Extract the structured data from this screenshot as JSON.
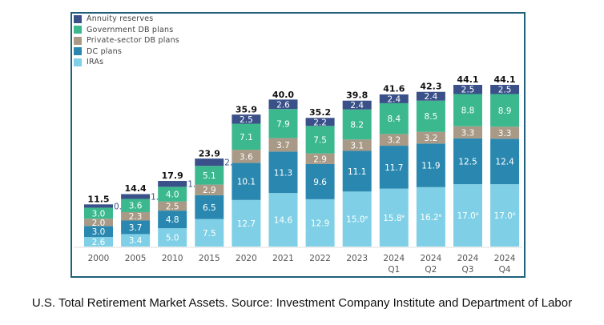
{
  "chart_data": {
    "type": "bar",
    "stacked": true,
    "title": "",
    "xlabel": "",
    "ylabel": "",
    "categories": [
      "2000",
      "2005",
      "2010",
      "2015",
      "2020",
      "2021",
      "2022",
      "2023",
      "2024\nQ1",
      "2024\nQ2",
      "2024\nQ3",
      "2024\nQ4"
    ],
    "series": [
      {
        "name": "IRAs",
        "color": "#7fd0e6",
        "values": [
          2.6,
          3.4,
          5.0,
          7.5,
          12.7,
          14.6,
          12.9,
          15.0,
          15.8,
          16.2,
          17.0,
          17.0
        ],
        "labels": [
          "2.6",
          "3.4",
          "5.0",
          "7.5",
          "12.7",
          "14.6",
          "12.9",
          "15.0e",
          "15.8e",
          "16.2e",
          "17.0e",
          "17.0e"
        ]
      },
      {
        "name": "DC plans",
        "color": "#2a88b0",
        "values": [
          3.0,
          3.7,
          4.8,
          6.5,
          10.1,
          11.3,
          9.6,
          11.1,
          11.7,
          11.9,
          12.5,
          12.4
        ]
      },
      {
        "name": "Private-sector DB plans",
        "color": "#a89a86",
        "values": [
          2.0,
          2.3,
          2.5,
          2.9,
          3.6,
          3.7,
          2.9,
          3.1,
          3.2,
          3.2,
          3.3,
          3.3
        ]
      },
      {
        "name": "Government DB plans",
        "color": "#3cb88e",
        "values": [
          3.0,
          3.6,
          4.0,
          5.1,
          7.1,
          7.9,
          7.5,
          8.2,
          8.4,
          8.5,
          8.8,
          8.9
        ]
      },
      {
        "name": "Annuity reserves",
        "color": "#3a5089",
        "values": [
          0.9,
          1.3,
          1.6,
          2.0,
          2.5,
          2.6,
          2.2,
          2.4,
          2.4,
          2.4,
          2.5,
          2.5
        ]
      }
    ],
    "totals": [
      11.5,
      14.4,
      17.9,
      23.9,
      35.9,
      40.0,
      35.2,
      39.8,
      41.6,
      42.3,
      44.1,
      44.1
    ],
    "outside_annuity_labels": [
      true,
      true,
      true,
      true,
      false,
      false,
      false,
      false,
      false,
      false,
      false,
      false
    ],
    "legend": [
      "Annuity reserves",
      "Government DB plans",
      "Private-sector DB plans",
      "DC plans",
      "IRAs"
    ],
    "legend_position": "top-left",
    "ylim": [
      0,
      46
    ],
    "grid": false
  },
  "caption": "U.S. Total Retirement Market Assets. Source: Investment Company Institute and Department of Labor"
}
